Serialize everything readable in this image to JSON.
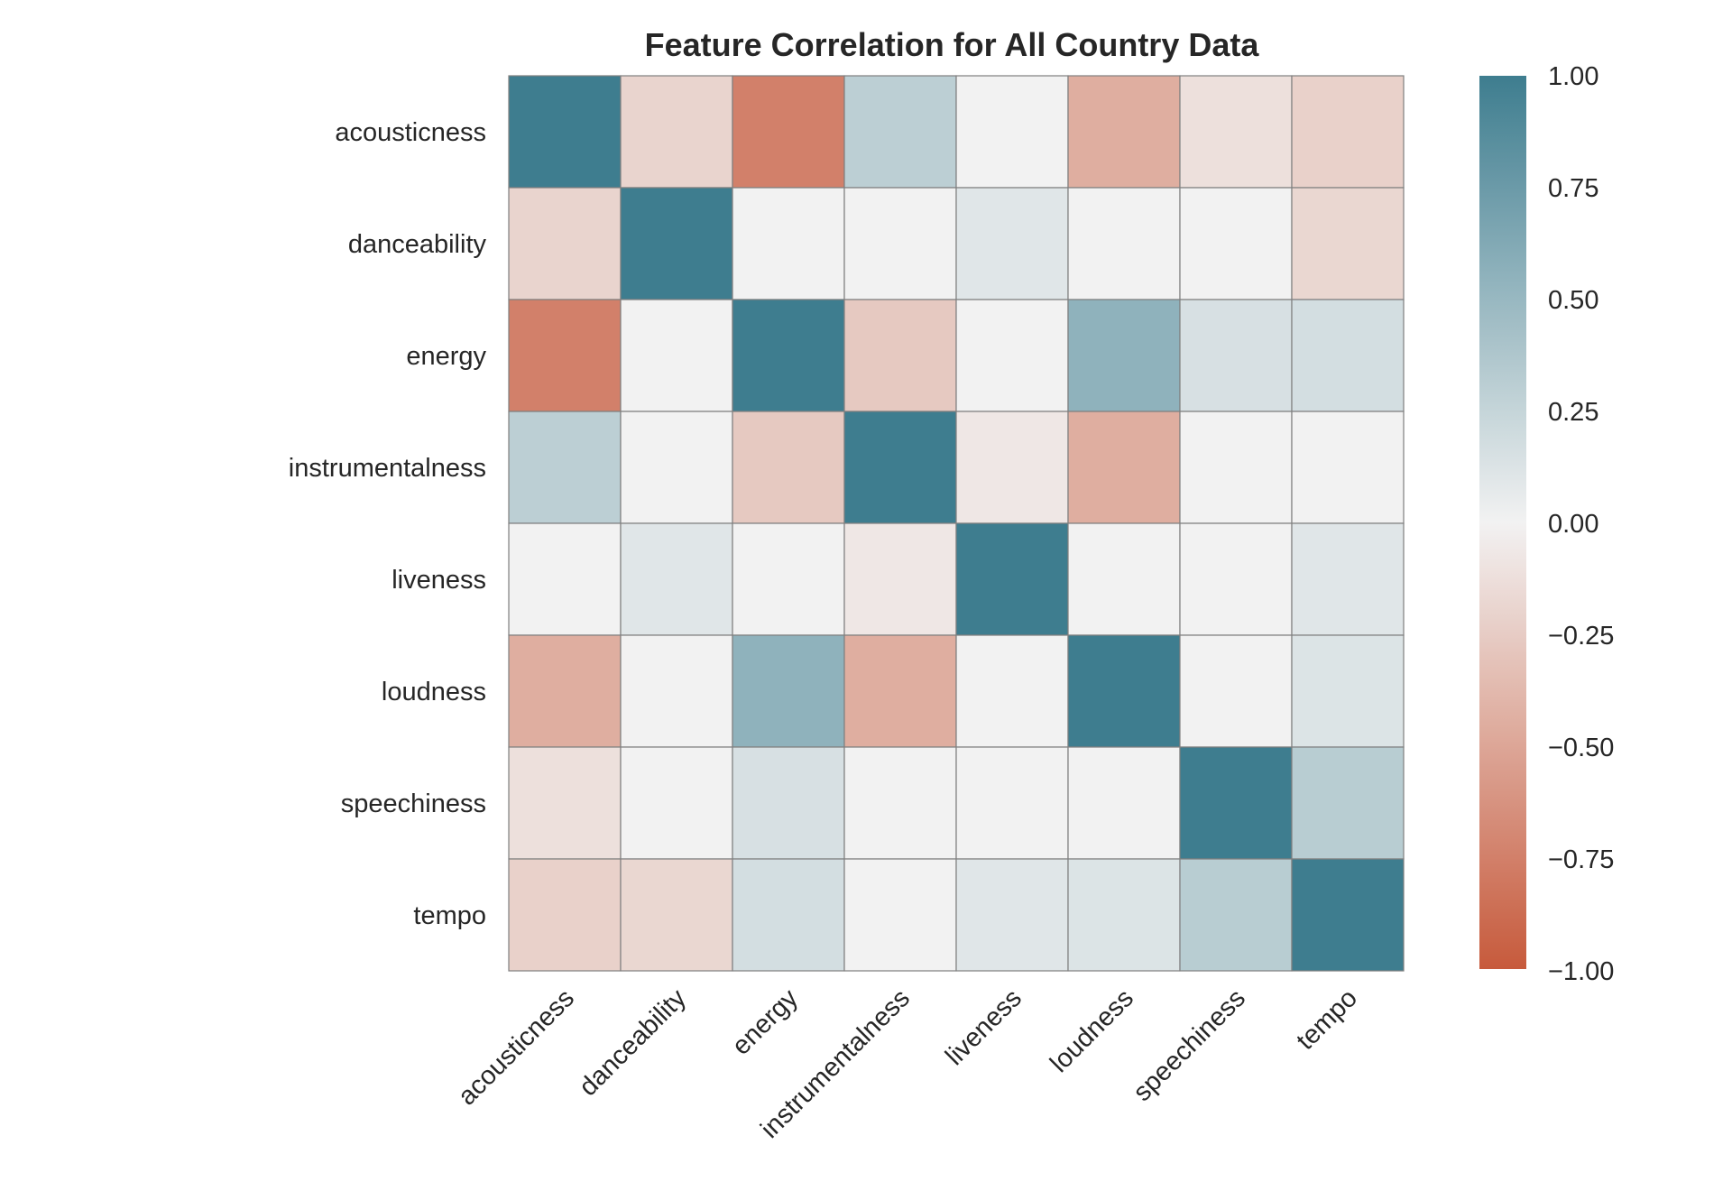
{
  "chart_data": {
    "type": "heatmap",
    "title": "Feature Correlation for All Country Data",
    "xlabel": "",
    "ylabel": "",
    "features": [
      "acousticness",
      "danceability",
      "energy",
      "instrumentalness",
      "liveness",
      "loudness",
      "speechiness",
      "tempo"
    ],
    "matrix": [
      [
        1.0,
        -0.2,
        -0.75,
        0.3,
        0.0,
        -0.45,
        -0.12,
        -0.22
      ],
      [
        -0.2,
        1.0,
        0.0,
        0.0,
        0.1,
        0.0,
        0.0,
        -0.18
      ],
      [
        -0.75,
        0.0,
        1.0,
        -0.27,
        0.0,
        0.55,
        0.15,
        0.17
      ],
      [
        0.3,
        0.0,
        -0.27,
        1.0,
        -0.07,
        -0.45,
        0.0,
        0.0
      ],
      [
        0.0,
        0.1,
        0.0,
        -0.07,
        1.0,
        0.0,
        0.0,
        0.1
      ],
      [
        -0.45,
        0.0,
        0.55,
        -0.45,
        0.0,
        1.0,
        0.0,
        0.12
      ],
      [
        -0.12,
        0.0,
        0.15,
        0.0,
        0.0,
        0.0,
        1.0,
        0.32
      ],
      [
        -0.22,
        -0.18,
        0.17,
        0.0,
        0.1,
        0.12,
        0.32,
        1.0
      ]
    ],
    "colorbar": {
      "vmin": -1.0,
      "vmax": 1.0,
      "ticks": [
        "1.00",
        "0.75",
        "0.50",
        "0.25",
        "0.00",
        "−0.25",
        "−0.50",
        "−0.75",
        "−1.00"
      ]
    },
    "colormap": {
      "negative": "#c75a3c",
      "center": "#f2f2f2",
      "positive": "#3e7d8f"
    },
    "grid": false
  }
}
